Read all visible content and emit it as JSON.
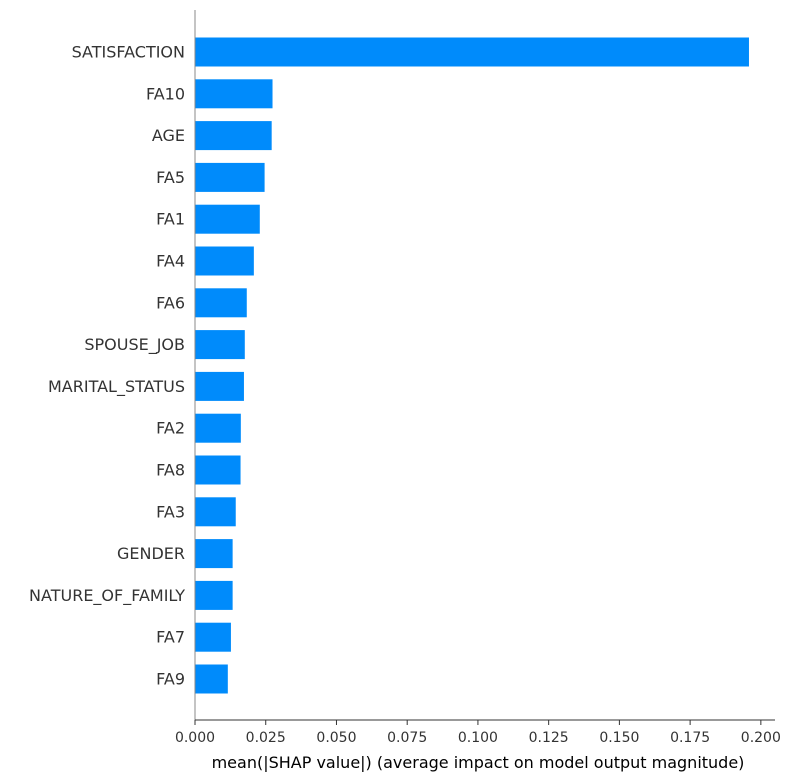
{
  "chart_data": {
    "type": "bar",
    "orientation": "horizontal",
    "categories": [
      "SATISFACTION",
      "FA10",
      "AGE",
      "FA5",
      "FA1",
      "FA4",
      "FA6",
      "SPOUSE_JOB",
      "MARITAL_STATUS",
      "FA2",
      "FA8",
      "FA3",
      "GENDER",
      "NATURE_OF_FAMILY",
      "FA7",
      "FA9"
    ],
    "values": [
      0.1958,
      0.0274,
      0.0271,
      0.0246,
      0.0229,
      0.0208,
      0.0183,
      0.0176,
      0.0173,
      0.0162,
      0.0161,
      0.0144,
      0.0133,
      0.0133,
      0.0127,
      0.0116
    ],
    "xlabel": "mean(|SHAP value|) (average impact on model output magnitude)",
    "xlim": [
      0.0,
      0.205
    ],
    "xticks": [
      "0.000",
      "0.025",
      "0.050",
      "0.075",
      "0.100",
      "0.125",
      "0.150",
      "0.175",
      "0.200"
    ],
    "bar_color": "#008bfb",
    "grid": false,
    "legend": "none"
  }
}
